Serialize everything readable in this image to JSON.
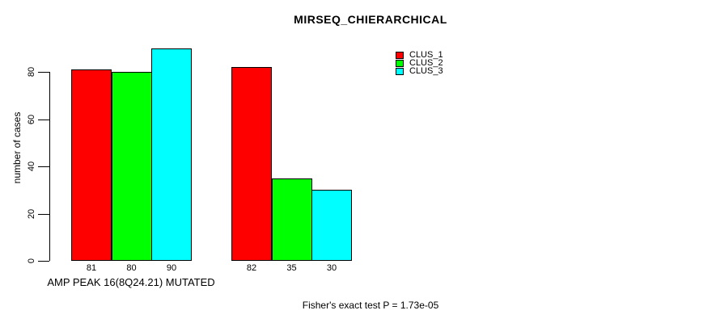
{
  "chart_data": {
    "type": "bar",
    "title": "MIRSEQ_CHIERARCHICAL",
    "ylabel": "number of cases",
    "xlabel": "AMP PEAK 16(8Q24.21) MUTATED",
    "footnote": "Fisher's exact test P = 1.73e-05",
    "ylim": [
      0,
      90
    ],
    "yticks": [
      0,
      20,
      40,
      60,
      80
    ],
    "grid": false,
    "legend_position": "top-right",
    "series": [
      {
        "name": "CLUS_1",
        "color": "#ff0000",
        "values": [
          81,
          82
        ]
      },
      {
        "name": "CLUS_2",
        "color": "#00ff00",
        "values": [
          80,
          35
        ]
      },
      {
        "name": "CLUS_3",
        "color": "#00ffff",
        "values": [
          90,
          30
        ]
      }
    ],
    "bar_value_labels": [
      [
        "81",
        "80",
        "90"
      ],
      [
        "82",
        "35",
        "30"
      ]
    ],
    "colors": {
      "background": "#ffffff",
      "axis": "#000000",
      "text": "#000000"
    }
  }
}
